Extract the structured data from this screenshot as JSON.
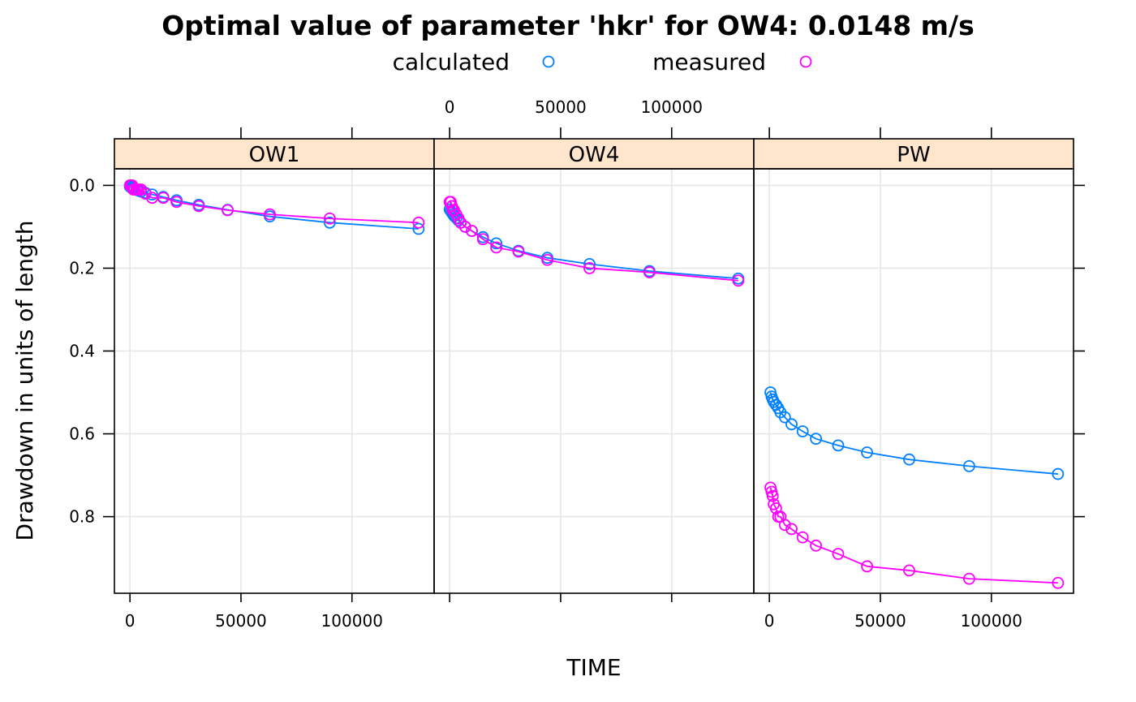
{
  "chart_data": {
    "type": "line",
    "title": "Optimal value of parameter 'hkr' for OW4: 0.0148 m/s",
    "xlabel": "TIME",
    "ylabel": "Drawdown in units of length",
    "x_ticks": [
      0,
      50000,
      100000
    ],
    "x_tick_labels": [
      "0",
      "50000",
      "100000"
    ],
    "y_ticks": [
      0.0,
      0.2,
      0.4,
      0.6,
      0.8
    ],
    "y_tick_labels": [
      "0.0",
      "0.2",
      "0.4",
      "0.6",
      "0.8"
    ],
    "xlim": [
      -7000,
      137000
    ],
    "ylim": [
      0.985,
      -0.04
    ],
    "y_reversed": true,
    "grid": true,
    "legend_position": "top",
    "strip_color": "#FFE5CC",
    "legend": [
      {
        "name": "calculated",
        "color": "#0080ff"
      },
      {
        "name": "measured",
        "color": "#ff00ff"
      }
    ],
    "panels": [
      {
        "name": "OW1",
        "series": [
          {
            "name": "calculated",
            "x": [
              0,
              500,
              1000,
              1500,
              2000,
              3000,
              4000,
              5000,
              7000,
              10000,
              15000,
              21000,
              31000,
              44000,
              63000,
              90000,
              130000
            ],
            "y": [
              0.003,
              0.005,
              0.006,
              0.007,
              0.009,
              0.011,
              0.013,
              0.015,
              0.018,
              0.022,
              0.028,
              0.036,
              0.047,
              0.059,
              0.075,
              0.09,
              0.105
            ]
          },
          {
            "name": "measured",
            "x": [
              0,
              500,
              1000,
              1500,
              2000,
              3000,
              4000,
              5000,
              7000,
              10000,
              15000,
              21000,
              31000,
              44000,
              63000,
              90000,
              130000
            ],
            "y": [
              0.0,
              0.0,
              0.0,
              0.01,
              0.01,
              0.01,
              0.01,
              0.01,
              0.02,
              0.03,
              0.03,
              0.04,
              0.05,
              0.06,
              0.07,
              0.08,
              0.09
            ]
          }
        ]
      },
      {
        "name": "OW4",
        "series": [
          {
            "name": "calculated",
            "x": [
              0,
              500,
              1000,
              1500,
              2000,
              3000,
              4000,
              5000,
              7000,
              10000,
              15000,
              21000,
              31000,
              44000,
              63000,
              90000,
              130000
            ],
            "y": [
              0.058,
              0.062,
              0.066,
              0.07,
              0.074,
              0.079,
              0.085,
              0.09,
              0.1,
              0.11,
              0.125,
              0.14,
              0.158,
              0.175,
              0.19,
              0.207,
              0.225
            ]
          },
          {
            "name": "measured",
            "x": [
              0,
              500,
              1000,
              1500,
              2000,
              3000,
              4000,
              5000,
              7000,
              10000,
              15000,
              21000,
              31000,
              44000,
              63000,
              90000,
              130000
            ],
            "y": [
              0.04,
              0.04,
              0.05,
              0.06,
              0.06,
              0.07,
              0.08,
              0.09,
              0.1,
              0.11,
              0.13,
              0.15,
              0.16,
              0.18,
              0.2,
              0.21,
              0.23
            ]
          }
        ]
      },
      {
        "name": "PW",
        "series": [
          {
            "name": "calculated",
            "x": [
              500,
              1000,
              1500,
              2000,
              3000,
              4000,
              5000,
              7000,
              10000,
              15000,
              21000,
              31000,
              44000,
              63000,
              90000,
              130000
            ],
            "y": [
              0.5,
              0.51,
              0.517,
              0.523,
              0.53,
              0.538,
              0.548,
              0.56,
              0.577,
              0.594,
              0.612,
              0.628,
              0.645,
              0.662,
              0.678,
              0.697
            ]
          },
          {
            "name": "measured",
            "x": [
              500,
              1000,
              1500,
              2000,
              3000,
              4000,
              5000,
              7000,
              10000,
              15000,
              21000,
              31000,
              44000,
              63000,
              90000,
              130000
            ],
            "y": [
              0.73,
              0.74,
              0.75,
              0.77,
              0.78,
              0.8,
              0.8,
              0.82,
              0.83,
              0.85,
              0.87,
              0.89,
              0.92,
              0.93,
              0.95,
              0.96
            ]
          }
        ]
      }
    ]
  }
}
